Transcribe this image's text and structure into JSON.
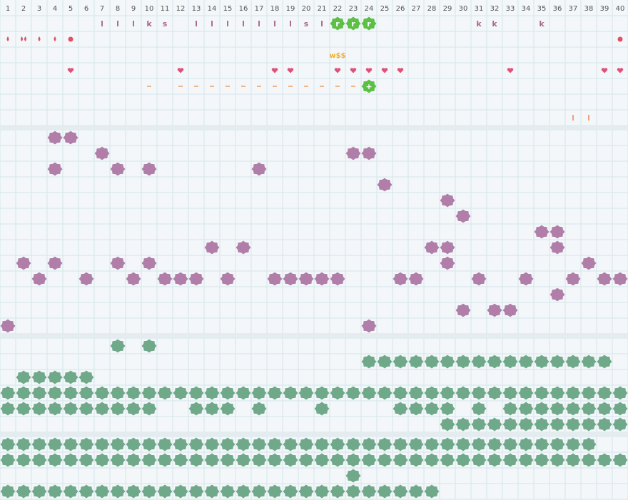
{
  "columns": [
    1,
    2,
    3,
    4,
    5,
    6,
    7,
    8,
    9,
    10,
    11,
    12,
    13,
    14,
    15,
    16,
    17,
    18,
    19,
    20,
    21,
    22,
    23,
    24,
    25,
    26,
    27,
    28,
    29,
    30,
    31,
    32,
    33,
    34,
    35,
    36,
    37,
    38,
    39,
    40
  ],
  "top_rows": {
    "letters": [
      null,
      null,
      null,
      null,
      null,
      null,
      "l",
      "l",
      "l",
      "k",
      "s",
      null,
      "l",
      "l",
      "l",
      "l",
      "l",
      "l",
      "l",
      "s",
      "l",
      "r",
      "r",
      "r",
      null,
      null,
      null,
      null,
      null,
      null,
      "k",
      "k",
      null,
      null,
      "k",
      null,
      null,
      null,
      null,
      null
    ],
    "markers": [
      null,
      null,
      null,
      null,
      null,
      null,
      null,
      null,
      null,
      null,
      null,
      null,
      null,
      null,
      null,
      null,
      null,
      null,
      null,
      null,
      null,
      "w$$",
      null,
      null,
      null,
      null,
      null,
      null,
      null,
      null,
      null,
      null,
      null,
      null,
      null,
      null,
      null,
      null,
      null,
      null
    ],
    "plus": [
      null,
      null,
      null,
      null,
      null,
      null,
      null,
      null,
      null,
      null,
      null,
      null,
      null,
      null,
      null,
      null,
      null,
      null,
      null,
      null,
      null,
      null,
      null,
      "+",
      null,
      null,
      null,
      null,
      null,
      null,
      null,
      null,
      null,
      null,
      null,
      null,
      null,
      null,
      null,
      null
    ]
  }
}
